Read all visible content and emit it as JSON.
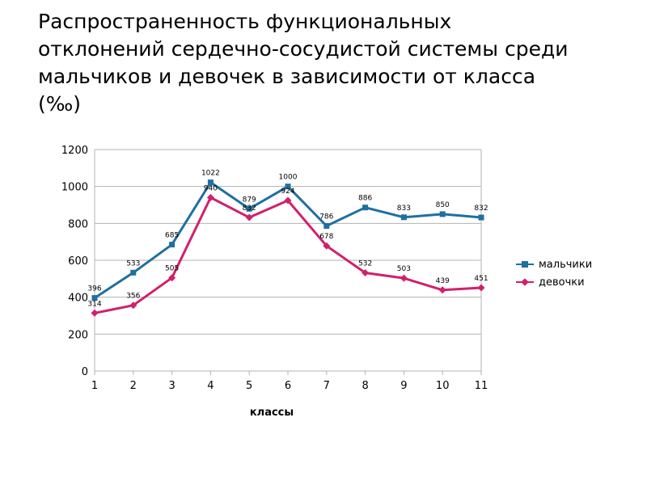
{
  "title_lines": [
    "Распространенность функциональных",
    "отклонений сердечно-сосудистой системы среди",
    "мальчиков и девочек в зависимости от класса",
    "(‰)"
  ],
  "chart_data": {
    "type": "line",
    "title": "",
    "xlabel": "классы",
    "ylabel": "",
    "x": [
      1,
      2,
      3,
      4,
      5,
      6,
      7,
      8,
      9,
      10,
      11
    ],
    "ylim": [
      0,
      1200
    ],
    "yticks": [
      0,
      200,
      400,
      600,
      800,
      1000,
      1200
    ],
    "grid": true,
    "legend_position": "right",
    "series": [
      {
        "name": "мальчики",
        "color": "#1f6f9f",
        "marker": "square",
        "values": [
          396,
          533,
          685,
          1022,
          879,
          1000,
          786,
          886,
          833,
          850,
          832
        ],
        "labels": [
          "396",
          "533",
          "685",
          "1022",
          "879",
          "1000",
          "786",
          "886",
          "833",
          "850",
          "832"
        ]
      },
      {
        "name": "девочки",
        "color": "#d0206e",
        "marker": "diamond",
        "values": [
          314,
          356,
          505,
          940,
          832,
          924,
          678,
          532,
          503,
          439,
          451
        ],
        "labels": [
          "314",
          "356",
          "505",
          "940",
          "832",
          "924",
          "678",
          "532",
          "503",
          "439",
          "451"
        ]
      }
    ]
  }
}
